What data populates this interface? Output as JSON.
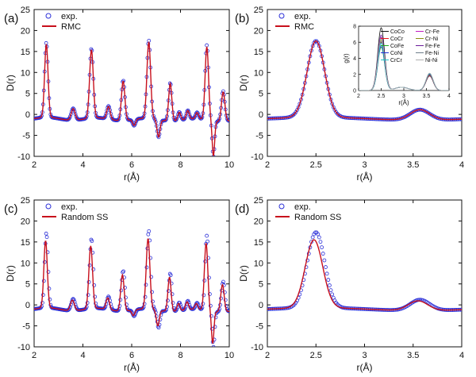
{
  "colors": {
    "exp": "#2b2fd8",
    "model": "#c8101c",
    "axis": "#111111"
  },
  "chart_data": [
    {
      "id": "a",
      "panel_label": "(a)",
      "type": "line",
      "xlabel": "r(Å)",
      "ylabel": "D(r)",
      "xlim": [
        2,
        10
      ],
      "ylim": [
        -10,
        25
      ],
      "xticks": [
        2,
        4,
        6,
        8,
        10
      ],
      "yticks": [
        -10,
        -5,
        0,
        5,
        10,
        15,
        20,
        25
      ],
      "legend": {
        "position": "top-left",
        "entries": [
          {
            "marker": "circle",
            "label": "exp."
          },
          {
            "marker": "line",
            "label": "RMC"
          }
        ]
      },
      "peaks": [
        {
          "x": 2.5,
          "y": 17.8,
          "w": 0.07
        },
        {
          "x": 3.6,
          "y": 2.8,
          "w": 0.08
        },
        {
          "x": 4.35,
          "y": 16.6,
          "w": 0.075
        },
        {
          "x": 5.05,
          "y": 3.1,
          "w": 0.07
        },
        {
          "x": 5.65,
          "y": 9.6,
          "w": 0.07
        },
        {
          "x": 6.1,
          "y": -1.5,
          "w": 0.06
        },
        {
          "x": 6.7,
          "y": 18.6,
          "w": 0.075
        },
        {
          "x": 7.1,
          "y": -4.2,
          "w": 0.06
        },
        {
          "x": 7.58,
          "y": 9.1,
          "w": 0.065
        },
        {
          "x": 7.95,
          "y": 2.0,
          "w": 0.06
        },
        {
          "x": 8.3,
          "y": 2.1,
          "w": 0.06
        },
        {
          "x": 8.68,
          "y": 1.5,
          "w": 0.06
        },
        {
          "x": 9.08,
          "y": 17.8,
          "w": 0.07
        },
        {
          "x": 9.35,
          "y": -8.5,
          "w": 0.05
        },
        {
          "x": 9.75,
          "y": 7.2,
          "w": 0.07
        }
      ],
      "series": [
        {
          "name": "exp.",
          "style": "markers",
          "offset": [
            0,
            0
          ],
          "scale": 1.0
        },
        {
          "name": "RMC",
          "style": "line",
          "offset": [
            0,
            0
          ],
          "scale": 0.98
        }
      ],
      "inset": null
    },
    {
      "id": "b",
      "panel_label": "(b)",
      "type": "line",
      "xlabel": "r(Å)",
      "ylabel": "D(r)",
      "xlim": [
        2.0,
        4.0
      ],
      "ylim": [
        -10,
        25
      ],
      "xticks": [
        2.0,
        2.5,
        3.0,
        3.5,
        4.0
      ],
      "yticks": [
        -10,
        -5,
        0,
        5,
        10,
        15,
        20,
        25
      ],
      "legend": {
        "position": "top-left",
        "entries": [
          {
            "marker": "circle",
            "label": "exp."
          },
          {
            "marker": "line",
            "label": "RMC"
          }
        ]
      },
      "peaks": [
        {
          "x": 2.5,
          "y": 18.2,
          "w": 0.09
        },
        {
          "x": 3.57,
          "y": 2.5,
          "w": 0.1
        }
      ],
      "series": [
        {
          "name": "exp.",
          "style": "markers",
          "offset": [
            0,
            0
          ],
          "scale": 1.0
        },
        {
          "name": "RMC",
          "style": "line",
          "offset": [
            0,
            0
          ],
          "scale": 1.0
        }
      ],
      "inset": {
        "type": "line",
        "xlabel": "r(Å)",
        "ylabel": "g(r)",
        "xlim": [
          2.0,
          4.0
        ],
        "ylim": [
          0,
          8
        ],
        "xticks": [
          2.0,
          2.5,
          3.0,
          3.5,
          4.0
        ],
        "yticks": [
          0,
          2,
          4,
          6,
          8
        ],
        "legend_entries": [
          {
            "label": "CoCo",
            "color": "#111111"
          },
          {
            "label": "Cr-Fe",
            "color": "#c21bc2"
          },
          {
            "label": "CoCr",
            "color": "#e8121a"
          },
          {
            "label": "Cr-Ni",
            "color": "#8a8f10"
          },
          {
            "label": "CoFe",
            "color": "#1fa51f"
          },
          {
            "label": "Fe-Fe",
            "color": "#6a1b9a"
          },
          {
            "label": "CoNi",
            "color": "#1f2fd8"
          },
          {
            "label": "Fe-Ni",
            "color": "#6e7d8a"
          },
          {
            "label": "CrCr",
            "color": "#1ebfc7"
          },
          {
            "label": "Ni-Ni",
            "color": "#b0b0b0"
          }
        ],
        "peak_heights": [
          7.8,
          6.6,
          6.0,
          6.3,
          5.4,
          6.9,
          5.6,
          6.1,
          5.9,
          6.5
        ],
        "second_peak": 2.0
      }
    },
    {
      "id": "c",
      "panel_label": "(c)",
      "type": "line",
      "xlabel": "r(Å)",
      "ylabel": "D(r)",
      "xlim": [
        2,
        10
      ],
      "ylim": [
        -10,
        25
      ],
      "xticks": [
        2,
        4,
        6,
        8,
        10
      ],
      "yticks": [
        -10,
        -5,
        0,
        5,
        10,
        15,
        20,
        25
      ],
      "legend": {
        "position": "top-left",
        "entries": [
          {
            "marker": "circle",
            "label": "exp."
          },
          {
            "marker": "line",
            "label": "Random SS"
          }
        ]
      },
      "peaks": [
        {
          "x": 2.5,
          "y": 17.8,
          "w": 0.07
        },
        {
          "x": 3.6,
          "y": 2.8,
          "w": 0.08
        },
        {
          "x": 4.35,
          "y": 16.6,
          "w": 0.075
        },
        {
          "x": 5.05,
          "y": 3.1,
          "w": 0.07
        },
        {
          "x": 5.65,
          "y": 9.6,
          "w": 0.07
        },
        {
          "x": 6.1,
          "y": -1.5,
          "w": 0.06
        },
        {
          "x": 6.7,
          "y": 18.6,
          "w": 0.075
        },
        {
          "x": 7.1,
          "y": -4.2,
          "w": 0.06
        },
        {
          "x": 7.58,
          "y": 9.1,
          "w": 0.065
        },
        {
          "x": 7.95,
          "y": 2.0,
          "w": 0.06
        },
        {
          "x": 8.3,
          "y": 2.1,
          "w": 0.06
        },
        {
          "x": 8.68,
          "y": 1.5,
          "w": 0.06
        },
        {
          "x": 9.08,
          "y": 17.8,
          "w": 0.07
        },
        {
          "x": 9.35,
          "y": -8.5,
          "w": 0.05
        },
        {
          "x": 9.75,
          "y": 7.2,
          "w": 0.07
        }
      ],
      "series": [
        {
          "name": "exp.",
          "style": "markers",
          "offset": [
            0,
            0
          ],
          "scale": 1.0
        },
        {
          "name": "Random SS",
          "style": "line",
          "offset": [
            -0.03,
            0
          ],
          "scale": 0.9
        }
      ],
      "inset": null
    },
    {
      "id": "d",
      "panel_label": "(d)",
      "type": "line",
      "xlabel": "r(Å)",
      "ylabel": "D(r)",
      "xlim": [
        2.0,
        4.0
      ],
      "ylim": [
        -10,
        25
      ],
      "xticks": [
        2.0,
        2.5,
        3.0,
        3.5,
        4.0
      ],
      "yticks": [
        -10,
        -5,
        0,
        5,
        10,
        15,
        20,
        25
      ],
      "legend": {
        "position": "top-left",
        "entries": [
          {
            "marker": "circle",
            "label": "exp."
          },
          {
            "marker": "line",
            "label": "Random SS"
          }
        ]
      },
      "peaks": [
        {
          "x": 2.5,
          "y": 18.0,
          "w": 0.09
        },
        {
          "x": 3.57,
          "y": 2.6,
          "w": 0.1
        }
      ],
      "series": [
        {
          "name": "exp.",
          "style": "markers",
          "offset": [
            0,
            0
          ],
          "scale": 1.0
        },
        {
          "name": "Random SS",
          "style": "line",
          "offset": [
            -0.02,
            0
          ],
          "scale": 0.9
        }
      ],
      "inset": null
    }
  ]
}
